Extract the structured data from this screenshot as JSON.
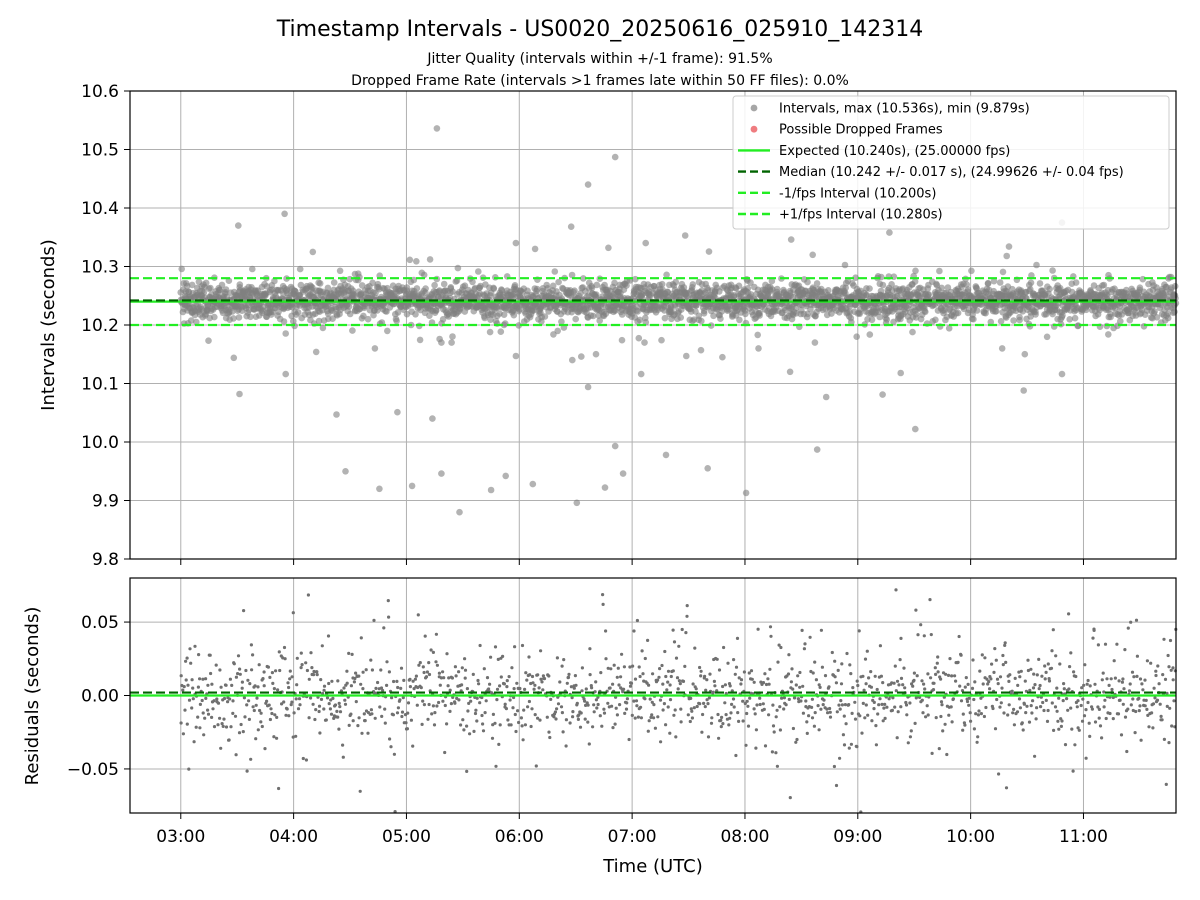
{
  "chart_data": {
    "type": "scatter",
    "title": "Timestamp Intervals - US0020_20250616_025910_142314",
    "subtitle_lines": [
      "Jitter Quality (intervals within +/-1 frame): 91.5%",
      "Dropped Frame Rate (intervals >1 frames late within 50 FF files): 0.0%"
    ],
    "grid": true,
    "xlabel": "Time (UTC)",
    "x_axis": {
      "unit": "hours UTC",
      "range": [
        2.55,
        11.82
      ],
      "tick_values": [
        3,
        4,
        5,
        6,
        7,
        8,
        9,
        10,
        11
      ],
      "tick_labels": [
        "03:00",
        "04:00",
        "05:00",
        "06:00",
        "07:00",
        "08:00",
        "09:00",
        "10:00",
        "11:00"
      ]
    },
    "panels": [
      {
        "id": "intervals",
        "ylabel": "Intervals (seconds)",
        "ylim": [
          9.8,
          10.6
        ],
        "tick_values": [
          9.8,
          9.9,
          10.0,
          10.1,
          10.2,
          10.3,
          10.4,
          10.5,
          10.6
        ],
        "tick_labels": [
          "9.8",
          "9.9",
          "10.0",
          "10.1",
          "10.2",
          "10.3",
          "10.4",
          "10.5",
          "10.6"
        ],
        "legend_position": "top-right",
        "legend": [
          {
            "label": "Intervals, max (10.536s), min (9.879s)",
            "kind": "marker",
            "color": "#808080"
          },
          {
            "label": "Possible Dropped Frames",
            "kind": "marker",
            "color": "#e8454a"
          },
          {
            "label": "Expected (10.240s), (25.00000 fps)",
            "kind": "line-solid",
            "color": "#22ee22"
          },
          {
            "label": "Median (10.242 +/- 0.017 s), (24.99626 +/- 0.04 fps)",
            "kind": "line-dashed",
            "color": "#006400"
          },
          {
            "label": "-1/fps Interval (10.200s)",
            "kind": "line-dashed",
            "color": "#22ee22"
          },
          {
            "label": "+1/fps Interval (10.280s)",
            "kind": "line-dashed",
            "color": "#22ee22"
          }
        ],
        "reference_lines": [
          {
            "y": 10.24,
            "style": "solid",
            "color": "#22ee22"
          },
          {
            "y": 10.242,
            "style": "dashed",
            "color": "#006400"
          },
          {
            "y": 10.2,
            "style": "dashed",
            "color": "#22ee22"
          },
          {
            "y": 10.28,
            "style": "dashed",
            "color": "#22ee22"
          }
        ],
        "series": [
          {
            "role": "intervals",
            "color": "#808080",
            "x_range": [
              3.0,
              11.82
            ],
            "count": 3100,
            "center": 10.241,
            "spread_sd": 0.017,
            "outliers": [
              [
                5.27,
                10.536
              ],
              [
                6.85,
                10.487
              ],
              [
                6.61,
                10.44
              ],
              [
                3.92,
                10.39
              ],
              [
                3.51,
                10.37
              ],
              [
                6.46,
                10.368
              ],
              [
                7.47,
                10.353
              ],
              [
                8.41,
                10.346
              ],
              [
                9.28,
                10.358
              ],
              [
                6.79,
                10.332
              ],
              [
                10.34,
                10.334
              ],
              [
                10.32,
                10.318
              ],
              [
                6.14,
                10.33
              ],
              [
                7.12,
                10.34
              ],
              [
                8.6,
                10.32
              ],
              [
                10.81,
                10.375
              ],
              [
                4.17,
                10.325
              ],
              [
                5.97,
                10.34
              ],
              [
                3.47,
                10.144
              ],
              [
                3.52,
                10.082
              ],
              [
                3.93,
                10.116
              ],
              [
                4.2,
                10.154
              ],
              [
                4.72,
                10.16
              ],
              [
                4.83,
                10.19
              ],
              [
                5.31,
                10.17
              ],
              [
                5.4,
                10.17
              ],
              [
                5.97,
                10.147
              ],
              [
                6.34,
                10.19
              ],
              [
                6.55,
                10.146
              ],
              [
                6.47,
                10.14
              ],
              [
                6.61,
                10.094
              ],
              [
                6.68,
                10.15
              ],
              [
                6.91,
                10.174
              ],
              [
                7.08,
                10.116
              ],
              [
                7.11,
                10.17
              ],
              [
                7.26,
                10.174
              ],
              [
                7.48,
                10.147
              ],
              [
                7.61,
                10.157
              ],
              [
                7.8,
                10.145
              ],
              [
                8.12,
                10.16
              ],
              [
                8.4,
                10.12
              ],
              [
                8.62,
                10.17
              ],
              [
                8.99,
                10.18
              ],
              [
                9.38,
                10.118
              ],
              [
                10.28,
                10.16
              ],
              [
                10.48,
                10.15
              ],
              [
                10.81,
                10.116
              ],
              [
                11.22,
                10.184
              ],
              [
                4.38,
                10.047
              ],
              [
                4.92,
                10.051
              ],
              [
                5.23,
                10.04
              ],
              [
                8.72,
                10.077
              ],
              [
                9.22,
                10.081
              ],
              [
                9.51,
                10.022
              ],
              [
                8.64,
                9.987
              ],
              [
                7.3,
                9.978
              ],
              [
                6.85,
                9.993
              ],
              [
                10.47,
                10.088
              ],
              [
                4.46,
                9.95
              ],
              [
                4.76,
                9.92
              ],
              [
                5.05,
                9.925
              ],
              [
                5.31,
                9.946
              ],
              [
                5.47,
                9.88
              ],
              [
                5.75,
                9.918
              ],
              [
                5.88,
                9.942
              ],
              [
                6.12,
                9.928
              ],
              [
                6.51,
                9.896
              ],
              [
                6.76,
                9.922
              ],
              [
                6.92,
                9.946
              ],
              [
                7.67,
                9.955
              ],
              [
                8.01,
                9.913
              ]
            ]
          },
          {
            "role": "possible-dropped-frames",
            "color": "#e8454a",
            "points": []
          }
        ]
      },
      {
        "id": "residuals",
        "ylabel": "Residuals (seconds)",
        "ylim": [
          -0.08,
          0.08
        ],
        "tick_values": [
          -0.05,
          0.0,
          0.05
        ],
        "tick_labels": [
          "−0.05",
          "0.00",
          "0.05"
        ],
        "reference_lines": [
          {
            "y": 0.0,
            "style": "solid",
            "color": "#22ee22"
          },
          {
            "y": 0.002,
            "style": "dashed",
            "color": "#006400"
          }
        ],
        "series": [
          {
            "role": "residuals",
            "color": "#707070",
            "x_range": [
              3.0,
              11.82
            ],
            "count": 1500,
            "spread_sd": 0.022
          }
        ]
      }
    ]
  }
}
